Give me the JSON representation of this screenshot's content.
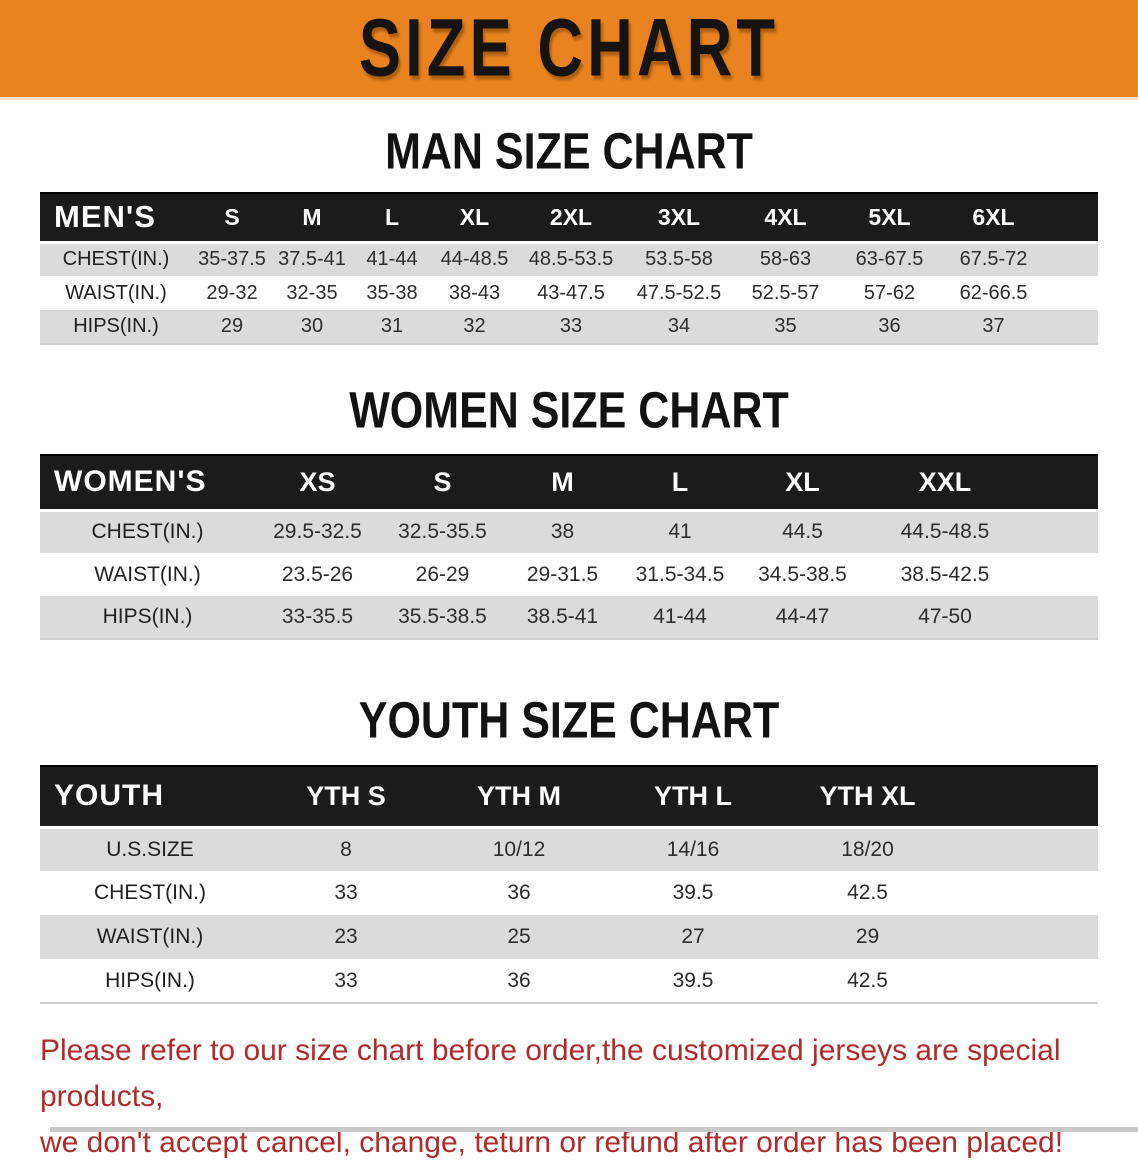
{
  "banner": {
    "title": "SIZE CHART"
  },
  "colors": {
    "banner_bg": "#E8831F",
    "header_band": "#1B1B1B",
    "row_shade": "#DBDBDB",
    "disclaimer_red": "#B02B2B"
  },
  "men_chart": {
    "heading": "MAN SIZE CHART",
    "header_label": "MEN'S",
    "columns": [
      "S",
      "M",
      "L",
      "XL",
      "2XL",
      "3XL",
      "4XL",
      "5XL",
      "6XL"
    ],
    "rows": [
      {
        "label": "CHEST(IN.)",
        "values": [
          "35-37.5",
          "37.5-41",
          "41-44",
          "44-48.5",
          "48.5-53.5",
          "53.5-58",
          "58-63",
          "63-67.5",
          "67.5-72"
        ]
      },
      {
        "label": "WAIST(IN.)",
        "values": [
          "29-32",
          "32-35",
          "35-38",
          "38-43",
          "43-47.5",
          "47.5-52.5",
          "52.5-57",
          "57-62",
          "62-66.5"
        ]
      },
      {
        "label": "HIPS(IN.)",
        "values": [
          "29",
          "30",
          "31",
          "32",
          "33",
          "34",
          "35",
          "36",
          "37"
        ]
      }
    ]
  },
  "women_chart": {
    "heading": "WOMEN SIZE CHART",
    "header_label": "WOMEN'S",
    "columns": [
      "XS",
      "S",
      "M",
      "L",
      "XL",
      "XXL"
    ],
    "rows": [
      {
        "label": "CHEST(IN.)",
        "values": [
          "29.5-32.5",
          "32.5-35.5",
          "38",
          "41",
          "44.5",
          "44.5-48.5"
        ]
      },
      {
        "label": "WAIST(IN.)",
        "values": [
          "23.5-26",
          "26-29",
          "29-31.5",
          "31.5-34.5",
          "34.5-38.5",
          "38.5-42.5"
        ]
      },
      {
        "label": "HIPS(IN.)",
        "values": [
          "33-35.5",
          "35.5-38.5",
          "38.5-41",
          "41-44",
          "44-47",
          "47-50"
        ]
      }
    ]
  },
  "youth_chart": {
    "heading": "YOUTH SIZE CHART",
    "header_label": "YOUTH",
    "columns": [
      "YTH S",
      "YTH M",
      "YTH L",
      "YTH XL"
    ],
    "rows": [
      {
        "label": "U.S.SIZE",
        "values": [
          "8",
          "10/12",
          "14/16",
          "18/20"
        ]
      },
      {
        "label": "CHEST(IN.)",
        "values": [
          "33",
          "36",
          "39.5",
          "42.5"
        ]
      },
      {
        "label": "WAIST(IN.)",
        "values": [
          "23",
          "25",
          "27",
          "29"
        ]
      },
      {
        "label": "HIPS(IN.)",
        "values": [
          "33",
          "36",
          "39.5",
          "42.5"
        ]
      }
    ]
  },
  "disclaimer": {
    "line1": "Please refer to our size chart before order,the customized jerseys are special products,",
    "line2": "we don't accept cancel, change, teturn or refund after order has been placed!"
  }
}
